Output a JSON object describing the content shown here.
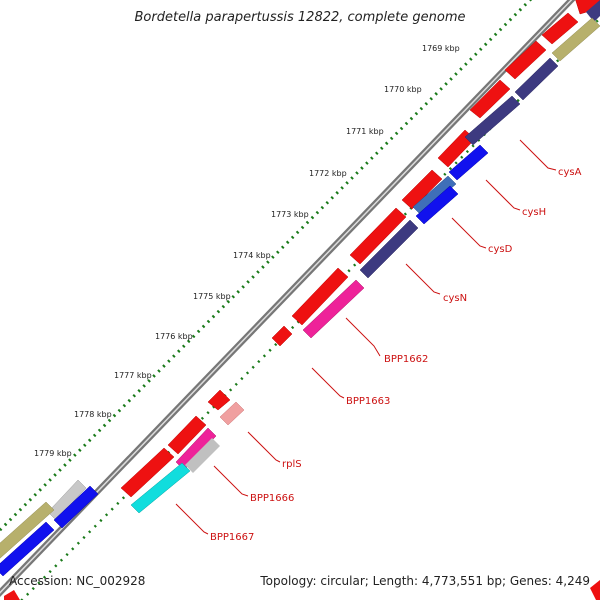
{
  "title": "Bordetella parapertussis 12822, complete genome",
  "accession_text": "Accession: NC_002928",
  "stats_text": "Topology: circular; Length: 4,773,551 bp; Genes: 4,249",
  "kbp_labels": [
    "1769 kbp",
    "1770 kbp",
    "1771 kbp",
    "1772 kbp",
    "1773 kbp",
    "1774 kbp",
    "1775 kbp",
    "1776 kbp",
    "1777 kbp",
    "1778 kbp",
    "1779 kbp"
  ],
  "gene_labels": [
    "cysA",
    "cysH",
    "cysD",
    "cysN",
    "BPP1662",
    "BPP1663",
    "rplS",
    "BPP1666",
    "BPP1667"
  ],
  "colors": {
    "forward_cds": "#ee1111",
    "reverse_cds": "#3d3a80",
    "magenta": "#ee2299",
    "cyan": "#11dddd",
    "olive": "#b7b06c",
    "blue": "#1111ee",
    "pink": "#f0a0a0",
    "label_red": "#cc1111",
    "ruler_green": "#1a7a1a",
    "backbone": "#777777"
  }
}
